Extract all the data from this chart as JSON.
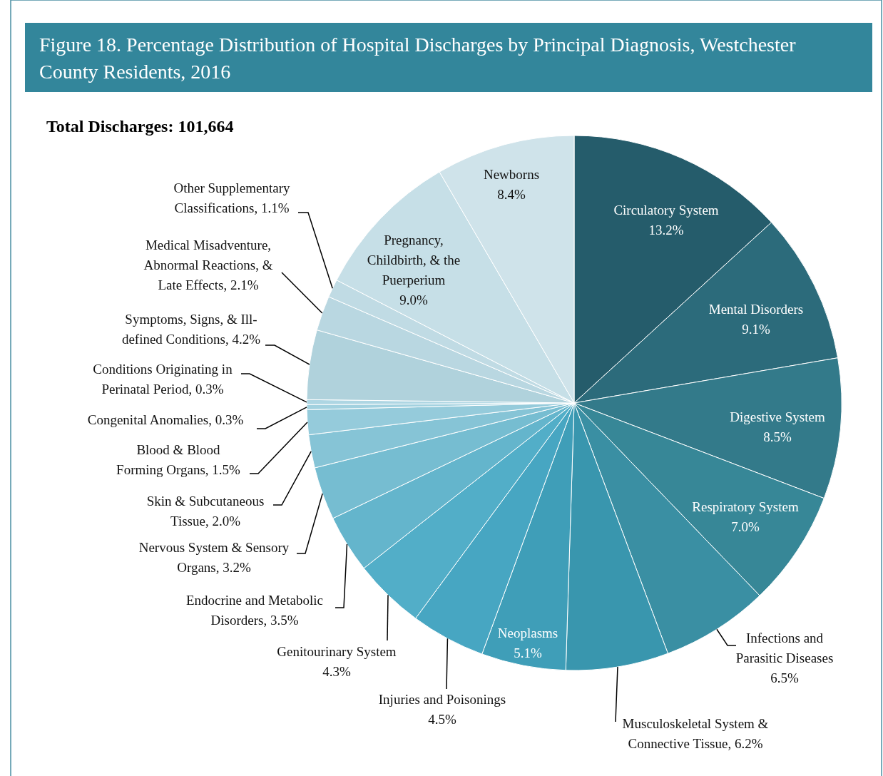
{
  "chart_data": {
    "type": "pie",
    "title": "Figure 18.  Percentage Distribution of Hospital Discharges by Principal Diagnosis, Westchester County Residents, 2016",
    "annotations": [
      "Total Discharges:  101,664"
    ],
    "categories": [
      "Circulatory System",
      "Mental Disorders",
      "Digestive System",
      "Respiratory System",
      "Infections and Parasitic Diseases",
      "Musculoskeletal System & Connective Tissue",
      "Neoplasms",
      "Injuries and Poisonings",
      "Genitourinary System",
      "Endocrine and Metabolic Disorders",
      "Nervous System & Sensory Organs",
      "Skin & Subcutaneous Tissue",
      "Blood & Blood Forming Organs",
      "Congenital Anomalies",
      "Conditions Originating in Perinatal Period",
      "Symptoms, Signs, & Ill-defined Conditions",
      "Medical Misadventure, Abnormal Reactions, & Late Effects",
      "Other Supplementary Classifications",
      "Pregnancy, Childbirth, & the Puerperium",
      "Newborns"
    ],
    "values": [
      13.2,
      9.1,
      8.5,
      7.0,
      6.5,
      6.2,
      5.1,
      4.5,
      4.3,
      3.5,
      3.2,
      2.0,
      1.5,
      0.3,
      0.3,
      4.2,
      2.1,
      1.1,
      9.0,
      8.4
    ],
    "value_labels": [
      "13.2%",
      "9.1%",
      "8.5%",
      "7.0%",
      "6.5%",
      "6.2%",
      "5.1%",
      "4.5%",
      "4.3%",
      "3.5%",
      "3.2%",
      "2.0%",
      "1.5%",
      "0.3%",
      "0.3%",
      "4.2%",
      "2.1%",
      "1.1%",
      "9.0%",
      "8.4%"
    ],
    "colors": [
      "#255c6b",
      "#2c6b7b",
      "#337a8a",
      "#378797",
      "#3a8fa3",
      "#3996ae",
      "#3f9eb8",
      "#47a6c2",
      "#52aec8",
      "#64b5cc",
      "#76bdd1",
      "#86c4d6",
      "#95cbdb",
      "#a2d1df",
      "#aed6e3",
      "#b0d2dc",
      "#b9d7e1",
      "#c0dbe4",
      "#c6dfe7",
      "#cfe3ea"
    ]
  }
}
